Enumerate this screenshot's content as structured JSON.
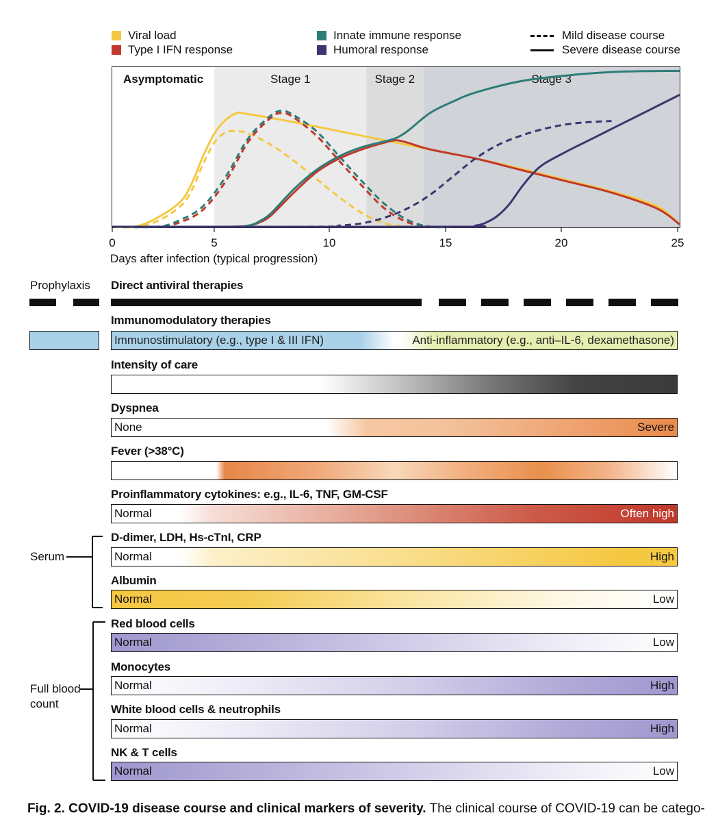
{
  "legend": {
    "viral_load": "Viral load",
    "type1_ifn": "Type I IFN response",
    "innate": "Innate immune response",
    "humoral": "Humoral response",
    "mild": "Mild disease course",
    "severe": "Severe disease course"
  },
  "colors": {
    "viral_load": "#f5c842",
    "type1_ifn": "#c0392b",
    "innate": "#2e7d78",
    "humoral": "#3b3670"
  },
  "chart_data": {
    "type": "line",
    "xlabel": "Days after infection (typical progression)",
    "ylabel": "",
    "xlim": [
      0,
      25
    ],
    "x_ticks": [
      "0",
      "5",
      "10",
      "15",
      "20",
      "25"
    ],
    "stages": [
      {
        "label": "Asymptomatic",
        "start": 0,
        "end": 4.5
      },
      {
        "label": "Stage 1",
        "start": 4.5,
        "end": 11.2
      },
      {
        "label": "Stage 2",
        "start": 11.2,
        "end": 13.7
      },
      {
        "label": "Stage 3",
        "start": 13.7,
        "end": 25
      }
    ],
    "series": [
      {
        "name": "Viral load",
        "course": "severe",
        "color": "#f5c842",
        "x": [
          0,
          1,
          2,
          3,
          3.5,
          4,
          4.5,
          5,
          5.5,
          6,
          8,
          10,
          12,
          14,
          16,
          18,
          20,
          22,
          24,
          25
        ],
        "y": [
          0,
          0,
          0.08,
          0.22,
          0.38,
          0.62,
          0.82,
          0.94,
          1.0,
          0.99,
          0.92,
          0.84,
          0.76,
          0.68,
          0.6,
          0.51,
          0.41,
          0.31,
          0.18,
          0.02
        ]
      },
      {
        "name": "Viral load",
        "course": "mild",
        "color": "#f5c842",
        "x": [
          0,
          1,
          2,
          3,
          3.5,
          4,
          4.5,
          5,
          5.5,
          6,
          7,
          8,
          9,
          10,
          11,
          12,
          13
        ],
        "y": [
          0,
          0,
          0.05,
          0.18,
          0.32,
          0.55,
          0.74,
          0.83,
          0.84,
          0.82,
          0.72,
          0.58,
          0.42,
          0.26,
          0.12,
          0.03,
          0
        ]
      },
      {
        "name": "Type I IFN response",
        "course": "mild",
        "color": "#c0392b",
        "x": [
          0,
          2,
          3,
          4,
          5,
          6,
          7,
          7.5,
          8,
          9,
          10,
          11,
          12,
          13,
          14,
          15
        ],
        "y": [
          0,
          0,
          0.04,
          0.15,
          0.4,
          0.75,
          0.96,
          1.0,
          0.96,
          0.8,
          0.58,
          0.36,
          0.16,
          0.04,
          0,
          0
        ]
      },
      {
        "name": "Innate immune response",
        "course": "mild",
        "color": "#2e7d78",
        "x": [
          0,
          2,
          3,
          4,
          5,
          6,
          7,
          7.5,
          8,
          9,
          10,
          11,
          12,
          13,
          14,
          15
        ],
        "y": [
          0,
          0,
          0.06,
          0.18,
          0.44,
          0.78,
          0.98,
          1.02,
          0.98,
          0.84,
          0.62,
          0.4,
          0.2,
          0.06,
          0,
          0
        ]
      },
      {
        "name": "Type I IFN response",
        "course": "severe",
        "color": "#c0392b",
        "x": [
          0,
          5,
          6,
          6.5,
          7,
          8,
          9,
          10,
          11,
          12,
          12.5,
          13,
          14,
          16,
          18,
          20,
          22,
          24,
          25
        ],
        "y": [
          0,
          0,
          0.01,
          0.04,
          0.1,
          0.3,
          0.48,
          0.6,
          0.68,
          0.74,
          0.76,
          0.74,
          0.68,
          0.6,
          0.5,
          0.4,
          0.3,
          0.16,
          0.02
        ]
      },
      {
        "name": "Innate immune response",
        "course": "severe",
        "color": "#2e7d78",
        "x": [
          0,
          5,
          6,
          6.5,
          7,
          8,
          9,
          10,
          11,
          12,
          12.5,
          13,
          14,
          15,
          16,
          18,
          20,
          22,
          24,
          25
        ],
        "y": [
          0,
          0,
          0.01,
          0.05,
          0.12,
          0.33,
          0.5,
          0.62,
          0.7,
          0.75,
          0.78,
          0.84,
          1.0,
          1.1,
          1.18,
          1.28,
          1.33,
          1.36,
          1.37,
          1.37
        ]
      },
      {
        "name": "Humoral response",
        "course": "mild",
        "color": "#3b3670",
        "x": [
          0,
          9,
          10,
          11,
          12,
          13,
          14,
          15,
          16,
          17,
          18,
          19,
          20,
          21,
          22
        ],
        "y": [
          0,
          0,
          0.01,
          0.03,
          0.08,
          0.16,
          0.28,
          0.44,
          0.6,
          0.72,
          0.8,
          0.86,
          0.9,
          0.92,
          0.93
        ]
      },
      {
        "name": "Humoral response",
        "course": "severe",
        "color": "#3b3670",
        "x": [
          0,
          15,
          16,
          16.5,
          17,
          17.5,
          18,
          18.5,
          19,
          20,
          21,
          22,
          23,
          24,
          25
        ],
        "y": [
          0,
          0,
          0.01,
          0.04,
          0.1,
          0.2,
          0.34,
          0.46,
          0.55,
          0.66,
          0.76,
          0.86,
          0.96,
          1.06,
          1.16
        ]
      }
    ]
  },
  "therapies": {
    "prophylaxis": "Prophylaxis",
    "direct_antiviral": "Direct antiviral therapies",
    "immunomodulatory": "Immunomodulatory therapies",
    "immunostimulatory": "Immunostimulatory (e.g., type I & III IFN)",
    "anti_inflammatory": "Anti-inflammatory (e.g., anti–IL-6, dexamethasone)"
  },
  "rows": {
    "intensity_care": {
      "label": "Intensity of care"
    },
    "dyspnea": {
      "label": "Dyspnea",
      "left": "None",
      "right": "Severe"
    },
    "fever": {
      "label": "Fever (>38°C)"
    },
    "cytokines": {
      "label": "Proinflammatory cytokines: e.g., IL-6, TNF, GM-CSF",
      "left": "Normal",
      "right": "Often high"
    },
    "ddimer": {
      "label": "D-dimer, LDH, Hs-cTnI, CRP",
      "left": "Normal",
      "right": "High"
    },
    "albumin": {
      "label": "Albumin",
      "left": "Normal",
      "right": "Low"
    },
    "rbc": {
      "label": "Red blood cells",
      "left": "Normal",
      "right": "Low"
    },
    "monocytes": {
      "label": "Monocytes",
      "left": "Normal",
      "right": "High"
    },
    "wbc": {
      "label": "White blood cells & neutrophils",
      "left": "Normal",
      "right": "High"
    },
    "nk": {
      "label": "NK & T cells",
      "left": "Normal",
      "right": "Low"
    }
  },
  "groups": {
    "serum": "Serum",
    "fbc_line1": "Full blood",
    "fbc_line2": "count"
  },
  "caption": {
    "bold": "Fig. 2. COVID-19 disease course and clinical markers of severity.",
    "text": " The clinical course of COVID-19 can be catego-"
  }
}
